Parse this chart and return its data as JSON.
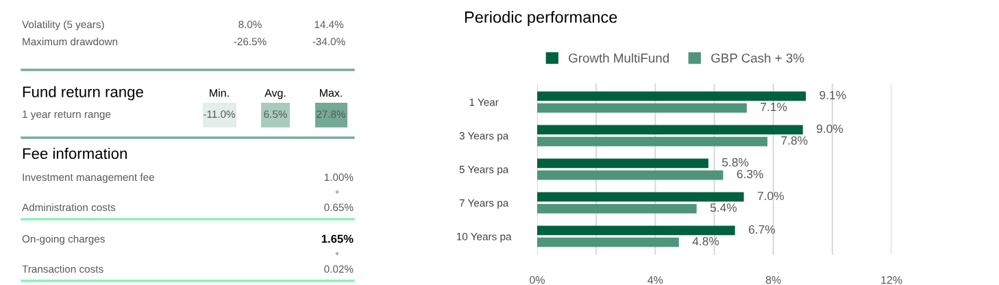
{
  "chart_data": [
    {
      "type": "other",
      "annotations": [
        "Volatility (5 years)",
        "8.0%",
        "14.4%",
        "Maximum drawdown",
        "-26.5%",
        "-34.0%",
        "Fund return range",
        "Min.",
        "Avg.",
        "Max.",
        "1 year return range",
        "-11.0%",
        "6.5%",
        "27.8%",
        "Fee information",
        "Investment management fee",
        "1.00%",
        "+",
        "Administration costs",
        "0.65%",
        "On-going charges",
        "1.65%",
        "+",
        "Transaction costs",
        "0.02%"
      ]
    },
    {
      "type": "bar",
      "orientation": "horizontal",
      "title": "Periodic performance",
      "categories": [
        "1 Year",
        "3 Years pa",
        "5 Years pa",
        "7 Years pa",
        "10 Years pa"
      ],
      "series": [
        {
          "name": "Growth MultiFund",
          "color": "#00613e",
          "values": [
            9.1,
            9.0,
            5.8,
            7.0,
            6.7
          ],
          "value_labels": [
            "9.1%",
            "9.0%",
            "5.8%",
            "7.0%",
            "6.7%"
          ]
        },
        {
          "name": "GBP Cash + 3%",
          "color": "#4e957a",
          "values": [
            7.1,
            7.8,
            6.3,
            5.4,
            4.8
          ],
          "value_labels": [
            "7.1%",
            "7.8%",
            "6.3%",
            "5.4%",
            "4.8%"
          ]
        }
      ],
      "xlim": [
        0,
        12
      ],
      "xticks": [
        {
          "value": 0,
          "label": "0%"
        },
        {
          "value": 2,
          "label": null
        },
        {
          "value": 4,
          "label": "4%"
        },
        {
          "value": 6,
          "label": null
        },
        {
          "value": 8,
          "label": "8%"
        },
        {
          "value": 10,
          "label": null
        },
        {
          "value": 12,
          "label": "12%"
        }
      ],
      "grid": "x",
      "legend": "top"
    }
  ]
}
